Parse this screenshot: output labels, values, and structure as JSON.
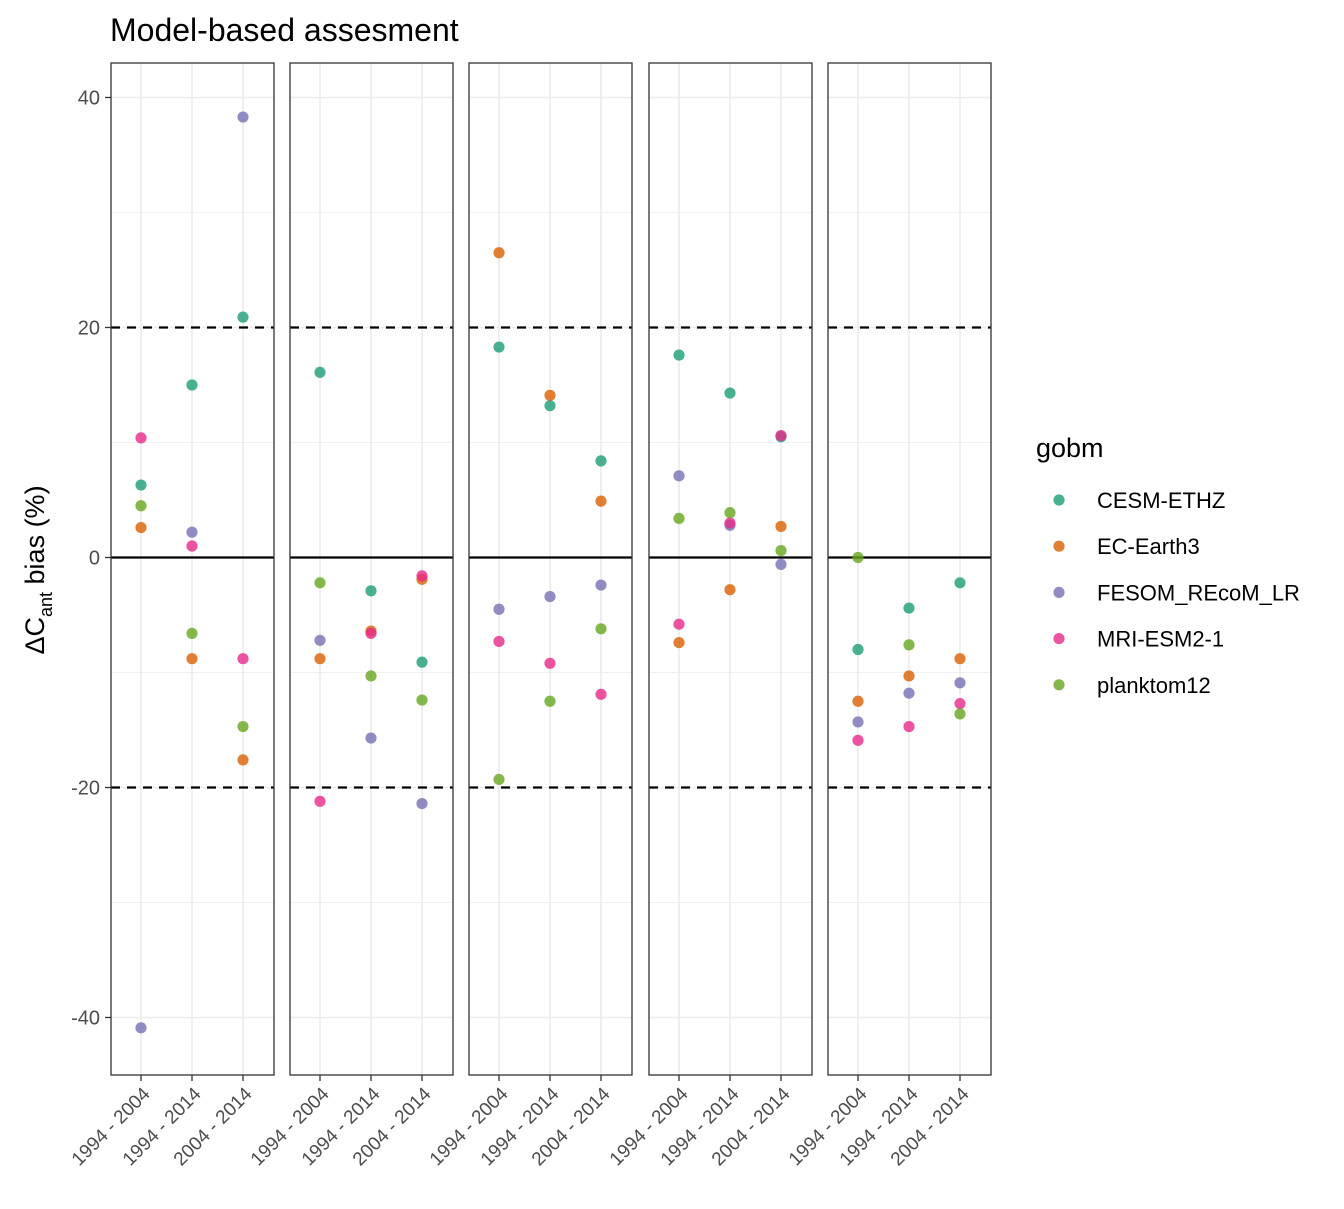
{
  "chart_data": {
    "type": "scatter",
    "title": "Model-based assesment",
    "ylabel": {
      "prefix": "ΔC",
      "subscript": "ant",
      "suffix": " bias (%)"
    },
    "xlabel": "",
    "ylim": [
      -45,
      43
    ],
    "yticks": [
      -40,
      -20,
      0,
      20,
      40
    ],
    "ytick_labels": [
      "-40",
      "-20",
      "0",
      "20",
      "40"
    ],
    "reference_lines": [
      {
        "y": 0,
        "style": "solid"
      },
      {
        "y": 20,
        "style": "dashed"
      },
      {
        "y": -20,
        "style": "dashed"
      }
    ],
    "grid": true,
    "legend": {
      "title": "gobm",
      "placement": "right"
    },
    "categories": [
      "1994 - 2004",
      "1994 - 2014",
      "2004 - 2014"
    ],
    "panels": [
      {
        "series": [
          {
            "name": "CESM-ETHZ",
            "values": [
              6.3,
              15.0,
              20.9
            ]
          },
          {
            "name": "EC-Earth3",
            "values": [
              2.6,
              -8.8,
              -17.6
            ]
          },
          {
            "name": "FESOM_REcoM_LR",
            "values": [
              -40.9,
              2.2,
              38.3
            ]
          },
          {
            "name": "MRI-ESM2-1",
            "values": [
              10.4,
              1.0,
              -8.8
            ]
          },
          {
            "name": "planktom12",
            "values": [
              4.5,
              -6.6,
              -14.7
            ]
          }
        ]
      },
      {
        "series": [
          {
            "name": "CESM-ETHZ",
            "values": [
              16.1,
              -2.9,
              -9.1
            ]
          },
          {
            "name": "EC-Earth3",
            "values": [
              -8.8,
              -6.4,
              -1.9
            ]
          },
          {
            "name": "FESOM_REcoM_LR",
            "values": [
              -7.2,
              -15.7,
              -21.4
            ]
          },
          {
            "name": "MRI-ESM2-1",
            "values": [
              -21.2,
              -6.6,
              -1.6
            ]
          },
          {
            "name": "planktom12",
            "values": [
              -2.2,
              -10.3,
              -12.4
            ]
          }
        ]
      },
      {
        "series": [
          {
            "name": "CESM-ETHZ",
            "values": [
              18.3,
              13.2,
              8.4
            ]
          },
          {
            "name": "EC-Earth3",
            "values": [
              26.5,
              14.1,
              4.9
            ]
          },
          {
            "name": "FESOM_REcoM_LR",
            "values": [
              -4.5,
              -3.4,
              -2.4
            ]
          },
          {
            "name": "MRI-ESM2-1",
            "values": [
              -7.3,
              -9.2,
              -11.9
            ]
          },
          {
            "name": "planktom12",
            "values": [
              -19.3,
              -12.5,
              -6.2
            ]
          }
        ]
      },
      {
        "series": [
          {
            "name": "CESM-ETHZ",
            "values": [
              17.6,
              14.3,
              10.5
            ]
          },
          {
            "name": "EC-Earth3",
            "values": [
              -7.4,
              -2.8,
              2.7
            ]
          },
          {
            "name": "FESOM_REcoM_LR",
            "values": [
              7.1,
              2.8,
              -0.6
            ]
          },
          {
            "name": "MRI-ESM2-1",
            "values": [
              -5.8,
              3.0,
              10.6
            ]
          },
          {
            "name": "planktom12",
            "values": [
              3.4,
              3.9,
              0.6
            ]
          }
        ]
      },
      {
        "series": [
          {
            "name": "CESM-ETHZ",
            "values": [
              -8.0,
              -4.4,
              -2.2
            ]
          },
          {
            "name": "EC-Earth3",
            "values": [
              -12.5,
              -10.3,
              -8.8
            ]
          },
          {
            "name": "FESOM_REcoM_LR",
            "values": [
              -14.3,
              -11.8,
              -10.9
            ]
          },
          {
            "name": "MRI-ESM2-1",
            "values": [
              -15.9,
              -14.7,
              -12.7
            ]
          },
          {
            "name": "planktom12",
            "values": [
              0.0,
              -7.6,
              -13.6
            ]
          }
        ]
      }
    ],
    "colors": {
      "CESM-ETHZ": "#1b9e77",
      "EC-Earth3": "#d95f02",
      "FESOM_REcoM_LR": "#7570b3",
      "MRI-ESM2-1": "#e7298a",
      "planktom12": "#66a61e"
    }
  }
}
